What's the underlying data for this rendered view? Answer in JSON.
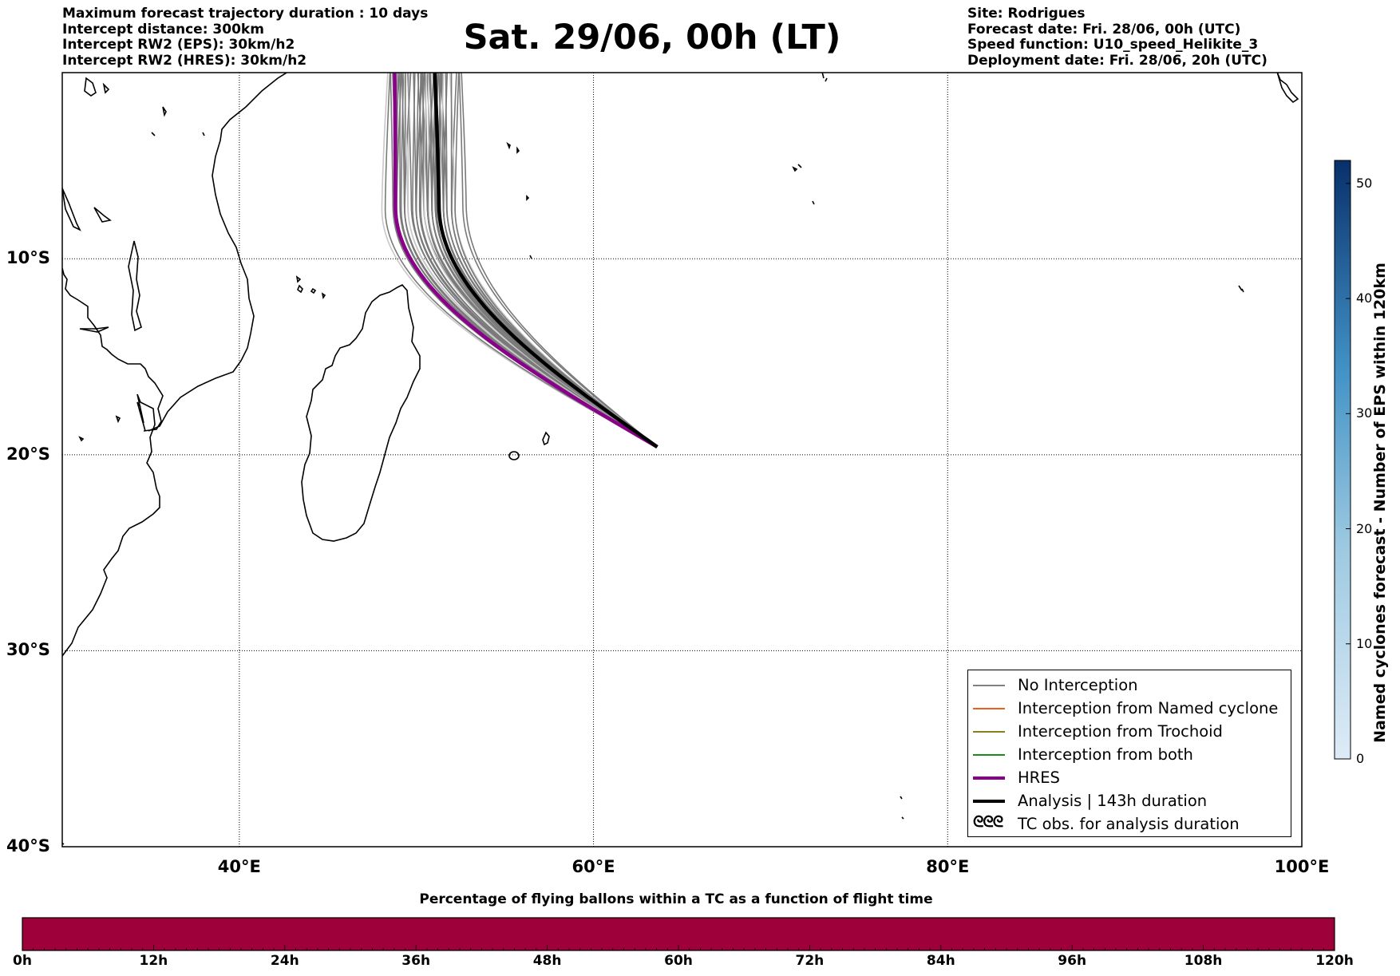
{
  "header_left": [
    "Maximum forecast trajectory duration : 10 days",
    "Intercept distance: 300km",
    "Intercept RW2 (EPS):  30km/h2",
    "Intercept RW2 (HRES): 30km/h2"
  ],
  "title": "Sat. 29/06, 00h (LT)",
  "header_right": [
    "Site: Rodrigues",
    "Forecast date: Fri. 28/06, 00h (UTC)",
    "Speed function: U10_speed_Helikite_3",
    "Deployment date: Fri. 28/06, 20h (UTC)"
  ],
  "map": {
    "lat_labels": [
      "10°S",
      "20°S",
      "30°S",
      "40°S"
    ],
    "lon_labels": [
      "40°E",
      "60°E",
      "80°E",
      "100°E"
    ],
    "extent": {
      "lon": [
        30,
        100
      ],
      "lat": [
        -40,
        -0.5
      ]
    },
    "colors": {
      "eps": "#7a7a7a",
      "hres": "#8b008b",
      "analysis": "#000000"
    }
  },
  "legend": [
    {
      "label": "No Interception",
      "color": "#808080",
      "style": "thin"
    },
    {
      "label": "Interception from Named cyclone",
      "color": "#e8601c",
      "style": "thin"
    },
    {
      "label": "Interception from Trochoid",
      "color": "#8b7d1a",
      "style": "thin"
    },
    {
      "label": "Interception from both",
      "color": "#1a8b1a",
      "style": "thin"
    },
    {
      "label": "HRES",
      "color": "#8b008b",
      "style": "thick"
    },
    {
      "label": "Analysis | 143h duration",
      "color": "#000000",
      "style": "thick"
    },
    {
      "label": "TC obs. for analysis duration",
      "symbol": "ᘓᘓᘓ",
      "style": "symbol"
    }
  ],
  "colorbar": {
    "label": "Named cyclones forecast - Number of EPS within 120km",
    "ticks": [
      "0",
      "10",
      "20",
      "30",
      "40",
      "50"
    ],
    "range": [
      0,
      52
    ],
    "colors": {
      "low": "#deebf7",
      "high": "#08306b"
    }
  },
  "percentage_bar": {
    "title": "Percentage of flying ballons within a TC as a function of flight time",
    "labels": [
      "0h",
      "12h",
      "24h",
      "36h",
      "48h",
      "60h",
      "72h",
      "84h",
      "96h",
      "108h",
      "120h"
    ],
    "fill_color": "#9e003a",
    "percentage": 0
  }
}
